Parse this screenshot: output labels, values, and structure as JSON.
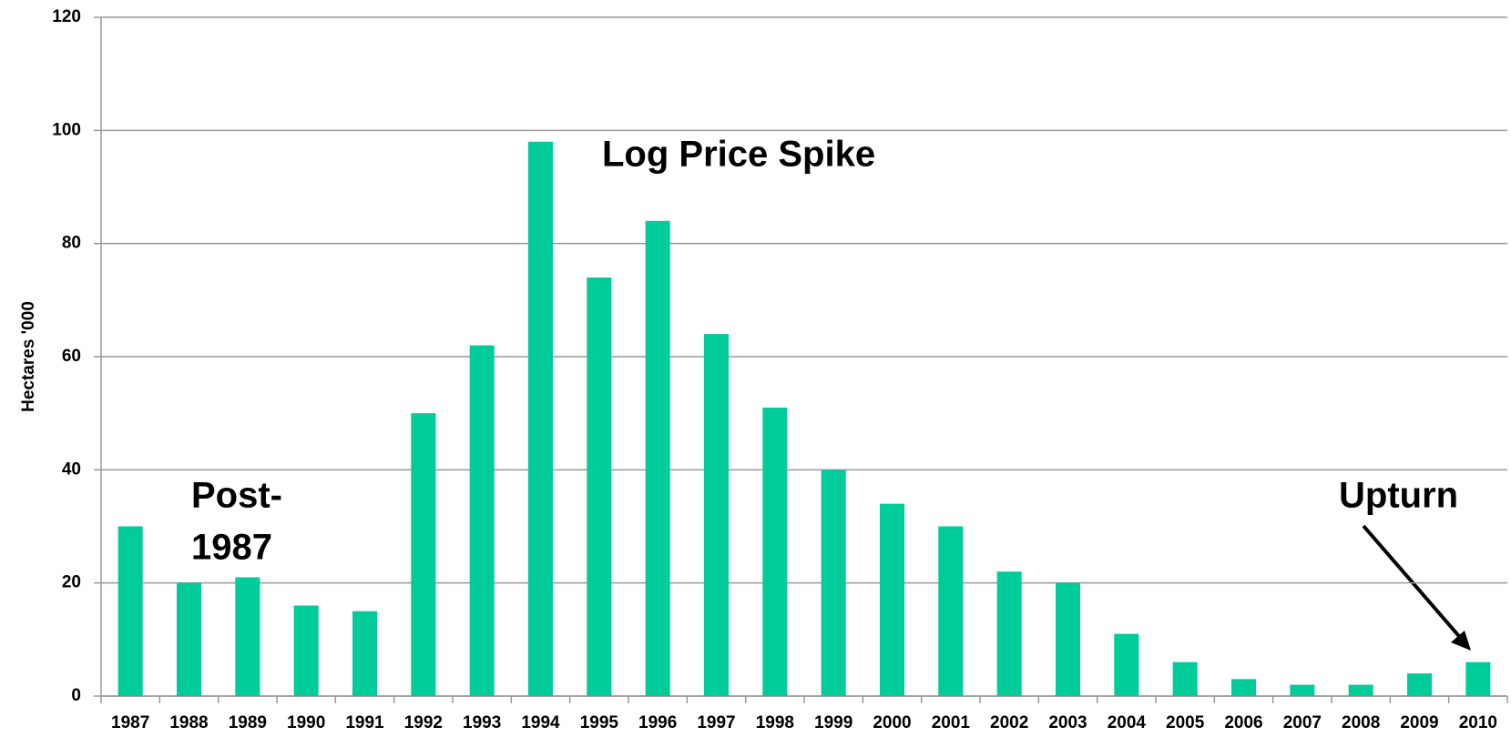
{
  "chart_data": {
    "type": "bar",
    "y_label": "Hectares '000",
    "categories": [
      "1987",
      "1988",
      "1989",
      "1990",
      "1991",
      "1992",
      "1993",
      "1994",
      "1995",
      "1996",
      "1997",
      "1998",
      "1999",
      "2000",
      "2001",
      "2002",
      "2003",
      "2004",
      "2005",
      "2006",
      "2007",
      "2008",
      "2009",
      "2010"
    ],
    "values": [
      30,
      20,
      21,
      16,
      15,
      50,
      62,
      98,
      74,
      84,
      64,
      51,
      40,
      34,
      30,
      22,
      20,
      11,
      6,
      3,
      2,
      2,
      4,
      6
    ],
    "color": "#00cc99",
    "ylim": [
      0,
      120
    ],
    "yticks": [
      0,
      20,
      40,
      60,
      80,
      100,
      120
    ],
    "grid": true,
    "annotations": [
      "Log Price Spike",
      "Post-",
      "1987",
      "Upturn"
    ]
  }
}
